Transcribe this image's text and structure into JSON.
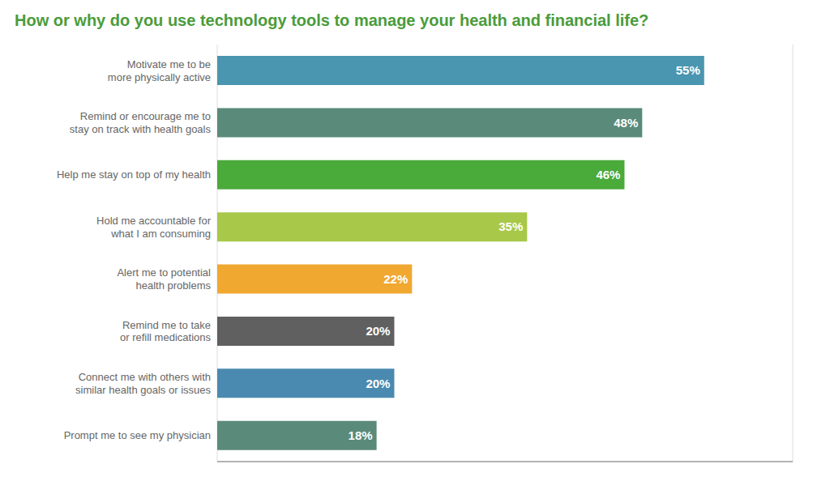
{
  "chart_data": {
    "type": "bar",
    "orientation": "horizontal",
    "title": "How or why do you use technology tools to manage your health and financial life?",
    "categories": [
      "Motivate me to be\nmore physically active",
      "Remind or encourage me to\nstay on track with health goals",
      "Help me stay on top of my health",
      "Hold me accountable for\nwhat I am consuming",
      "Alert me to potential\nhealth problems",
      "Remind me to take\nor refill medications",
      "Connect me with others with\nsimilar health goals or issues",
      "Prompt me to see my physician"
    ],
    "values": [
      55,
      48,
      46,
      35,
      22,
      20,
      20,
      18
    ],
    "value_labels": [
      "55%",
      "48%",
      "46%",
      "35%",
      "22%",
      "20%",
      "20%",
      "18%"
    ],
    "colors": [
      "#4a95b0",
      "#5a8a7a",
      "#4aaa3a",
      "#a8c84a",
      "#f0a830",
      "#606060",
      "#4a8ab0",
      "#5a8a7a"
    ],
    "xlim": [
      0,
      65
    ],
    "xticks": [
      0,
      10,
      20,
      30,
      40,
      50,
      60
    ],
    "grid": true,
    "data_labels": true,
    "tick_labels": "y"
  }
}
